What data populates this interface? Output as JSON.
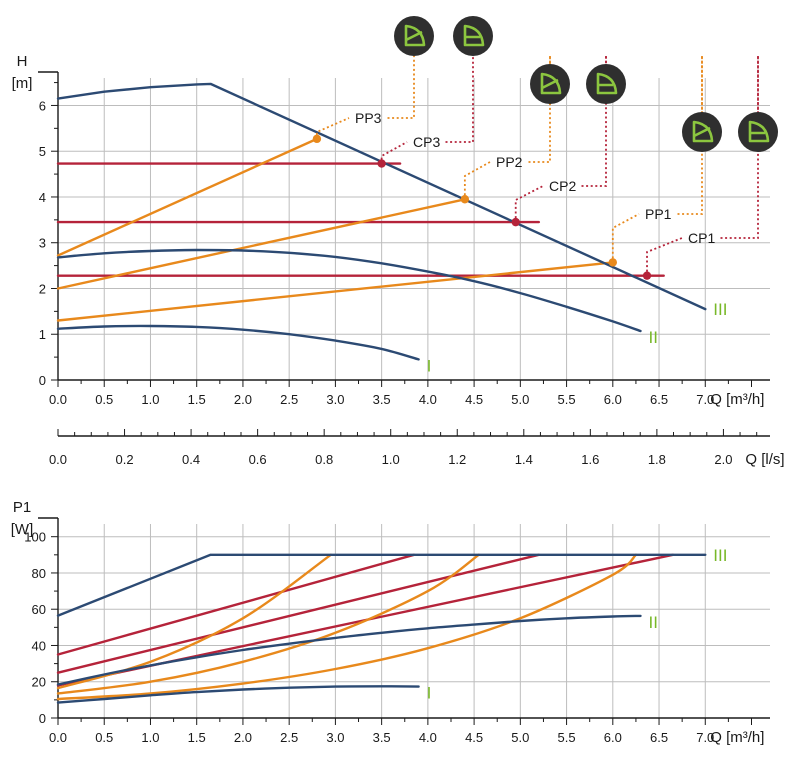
{
  "colors": {
    "speed_curve": "#2c4a73",
    "proportional_pressure": "#e8891c",
    "constant_pressure": "#b5233a",
    "grid": "#bdbdbd",
    "axis": "#1a1a1a",
    "speed_label": "#78b828",
    "badge_bg": "#2f2f2f",
    "badge_icon": "#8cc63f"
  },
  "chart_data": [
    {
      "type": "line",
      "id": "head",
      "ylabel": "H",
      "yunit": "[m]",
      "xlabel": "Q [m³/h]",
      "xlim": [
        0,
        7.7
      ],
      "ylim": [
        0,
        6.6
      ],
      "xticks": [
        0,
        0.5,
        1,
        1.5,
        2,
        2.5,
        3,
        3.5,
        4,
        4.5,
        5,
        5.5,
        6,
        6.5,
        7
      ],
      "xtick_labels": [
        "0.0",
        "0.5",
        "1.0",
        "1.5",
        "2.0",
        "2.5",
        "3.0",
        "3.5",
        "4.0",
        "4.5",
        "5.0",
        "5.5",
        "6.0",
        "6.5",
        "7.0"
      ],
      "yticks": [
        0,
        1,
        2,
        3,
        4,
        5,
        6
      ],
      "ytick_labels": [
        "0",
        "1",
        "2",
        "3",
        "4",
        "5",
        "6"
      ],
      "grid": true,
      "speed_curves": [
        {
          "name": "I",
          "x": [
            0,
            0.5,
            1.0,
            1.5,
            2.0,
            2.5,
            3.0,
            3.5,
            3.9
          ],
          "y": [
            1.12,
            1.17,
            1.18,
            1.16,
            1.1,
            1.0,
            0.86,
            0.68,
            0.45
          ]
        },
        {
          "name": "II",
          "x": [
            0,
            0.5,
            1.0,
            1.5,
            2.0,
            2.5,
            3.0,
            3.5,
            4.0,
            4.5,
            5.0,
            5.5,
            6.0,
            6.3
          ],
          "y": [
            2.68,
            2.77,
            2.82,
            2.84,
            2.83,
            2.78,
            2.69,
            2.55,
            2.37,
            2.16,
            1.9,
            1.6,
            1.28,
            1.07
          ]
        },
        {
          "name": "III",
          "x": [
            0,
            0.5,
            1.0,
            1.5,
            1.65,
            7.0
          ],
          "y": [
            6.15,
            6.3,
            6.4,
            6.46,
            6.47,
            1.55
          ]
        }
      ],
      "proportional_pressure": [
        {
          "name": "PP1",
          "x": [
            0,
            6.0
          ],
          "y": [
            1.3,
            2.57
          ],
          "point": [
            6.0,
            2.57
          ]
        },
        {
          "name": "PP2",
          "x": [
            0,
            4.4
          ],
          "y": [
            2.0,
            3.95
          ],
          "point": [
            4.4,
            3.95
          ]
        },
        {
          "name": "PP3",
          "x": [
            0,
            2.8
          ],
          "y": [
            2.72,
            5.27
          ],
          "point": [
            2.8,
            5.27
          ]
        }
      ],
      "constant_pressure": [
        {
          "name": "CP1",
          "x": [
            0,
            6.55
          ],
          "y": [
            2.28,
            2.28
          ],
          "point": [
            6.37,
            2.28
          ]
        },
        {
          "name": "CP2",
          "x": [
            0,
            5.2
          ],
          "y": [
            3.45,
            3.45
          ],
          "point": [
            4.95,
            3.45
          ]
        },
        {
          "name": "CP3",
          "x": [
            0,
            3.7
          ],
          "y": [
            4.73,
            4.73
          ],
          "point": [
            3.5,
            4.73
          ]
        }
      ]
    },
    {
      "type": "line",
      "id": "flow_axis",
      "xlabel": "Q [l/s]",
      "xlim": [
        0,
        2.14
      ],
      "xticks": [
        0,
        0.2,
        0.4,
        0.6,
        0.8,
        1.0,
        1.2,
        1.4,
        1.6,
        1.8,
        2.0
      ],
      "xtick_labels": [
        "0.0",
        "0.2",
        "0.4",
        "0.6",
        "0.8",
        "1.0",
        "1.2",
        "1.4",
        "1.6",
        "1.8",
        "2.0"
      ]
    },
    {
      "type": "line",
      "id": "power",
      "ylabel": "P1",
      "yunit": "[W]",
      "xlabel": "Q [m³/h]",
      "xlim": [
        0,
        7.7
      ],
      "ylim": [
        0,
        107
      ],
      "xticks": [
        0,
        0.5,
        1,
        1.5,
        2,
        2.5,
        3,
        3.5,
        4,
        4.5,
        5,
        5.5,
        6,
        6.5,
        7
      ],
      "xtick_labels": [
        "0.0",
        "0.5",
        "1.0",
        "1.5",
        "2.0",
        "2.5",
        "3.0",
        "3.5",
        "4.0",
        "4.5",
        "5.0",
        "5.5",
        "6.0",
        "6.5",
        "7.0"
      ],
      "yticks": [
        0,
        20,
        40,
        60,
        80,
        100
      ],
      "ytick_labels": [
        "0",
        "20",
        "40",
        "60",
        "80",
        "100"
      ],
      "grid": true,
      "speed_curves": [
        {
          "name": "I",
          "x": [
            0,
            0.5,
            1.0,
            1.5,
            2.0,
            2.5,
            3.0,
            3.5,
            3.9
          ],
          "y": [
            8.5,
            10.5,
            12.5,
            14.3,
            15.7,
            16.7,
            17.3,
            17.5,
            17.3
          ]
        },
        {
          "name": "II",
          "x": [
            0,
            0.5,
            1.0,
            1.5,
            2.0,
            2.5,
            3.0,
            3.5,
            4.0,
            4.5,
            5.0,
            5.5,
            6.0,
            6.3
          ],
          "y": [
            18.5,
            24,
            29,
            33.5,
            37.5,
            41,
            44.2,
            47,
            49.5,
            51.5,
            53.5,
            55,
            56,
            56.3
          ]
        },
        {
          "name": "III",
          "x": [
            0,
            1.65,
            7.0
          ],
          "y": [
            56.5,
            90,
            90
          ]
        }
      ],
      "proportional_pressure": [
        {
          "name": "PP1",
          "x": [
            0,
            1,
            2,
            3,
            4,
            5,
            6,
            6.25
          ],
          "y": [
            10.5,
            13.5,
            19,
            27,
            38.5,
            55,
            79,
            90
          ]
        },
        {
          "name": "PP2",
          "x": [
            0,
            1,
            2,
            3,
            4,
            4.55
          ],
          "y": [
            13.5,
            20,
            31,
            47,
            70,
            90
          ]
        },
        {
          "name": "PP3",
          "x": [
            0,
            1,
            2,
            2.95
          ],
          "y": [
            16.5,
            31,
            55,
            90
          ]
        }
      ],
      "constant_pressure": [
        {
          "name": "CP1",
          "x": [
            0,
            6.65
          ],
          "y": [
            18,
            90
          ]
        },
        {
          "name": "CP2",
          "x": [
            0,
            5.2
          ],
          "y": [
            25,
            90
          ]
        },
        {
          "name": "CP3",
          "x": [
            0,
            3.85
          ],
          "y": [
            35,
            90
          ]
        }
      ]
    }
  ],
  "callouts": [
    {
      "label": "PP3",
      "pair": "PP3"
    },
    {
      "label": "CP3",
      "pair": "CP3"
    },
    {
      "label": "PP2",
      "pair": "PP2"
    },
    {
      "label": "CP2",
      "pair": "CP2"
    },
    {
      "label": "PP1",
      "pair": "PP1"
    },
    {
      "label": "CP1",
      "pair": "CP1"
    }
  ],
  "badges": [
    {
      "icon": "proportional-pressure-icon",
      "mode": "PP3"
    },
    {
      "icon": "constant-pressure-icon",
      "mode": "CP3"
    },
    {
      "icon": "proportional-pressure-icon",
      "mode": "PP2"
    },
    {
      "icon": "constant-pressure-icon",
      "mode": "CP2"
    },
    {
      "icon": "proportional-pressure-icon",
      "mode": "PP1"
    },
    {
      "icon": "constant-pressure-icon",
      "mode": "CP1"
    }
  ]
}
